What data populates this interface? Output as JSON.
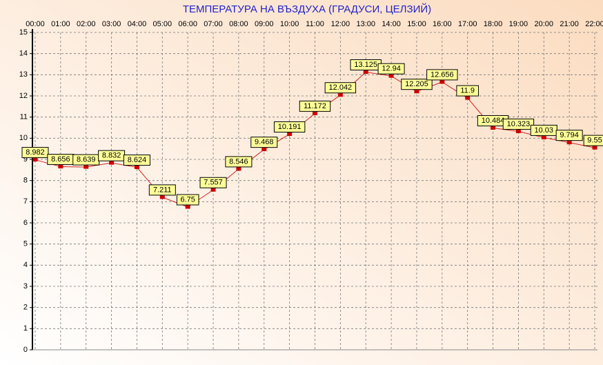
{
  "chart_data": {
    "type": "line",
    "title": "ТЕМПЕРАТУРА НА ВЪЗДУХА  (ГРАДУСИ, ЦЕЛЗИЙ)",
    "categories": [
      "00:00",
      "01:00",
      "02:00",
      "03:00",
      "04:00",
      "05:00",
      "06:00",
      "07:00",
      "08:00",
      "09:00",
      "10:00",
      "11:00",
      "12:00",
      "13:00",
      "14:00",
      "15:00",
      "16:00",
      "17:00",
      "18:00",
      "19:00",
      "20:00",
      "21:00",
      "22:00"
    ],
    "series": [
      {
        "color": "#cc2222",
        "values": [
          8.982,
          8.656,
          8.639,
          8.832,
          8.624,
          7.211,
          6.75,
          7.557,
          8.546,
          9.468,
          10.191,
          11.172,
          12.042,
          13.125,
          12.94,
          12.205,
          12.656,
          11.9,
          10.484,
          10.323,
          10.03,
          9.794,
          9.55
        ]
      }
    ],
    "ylim": [
      0,
      15
    ],
    "yticks": [
      0,
      1,
      2,
      3,
      4,
      5,
      6,
      7,
      8,
      9,
      10,
      11,
      12,
      13,
      14,
      15
    ],
    "grid": true,
    "marker_color": "#cc0000",
    "label_box_color": "#ffff99"
  }
}
